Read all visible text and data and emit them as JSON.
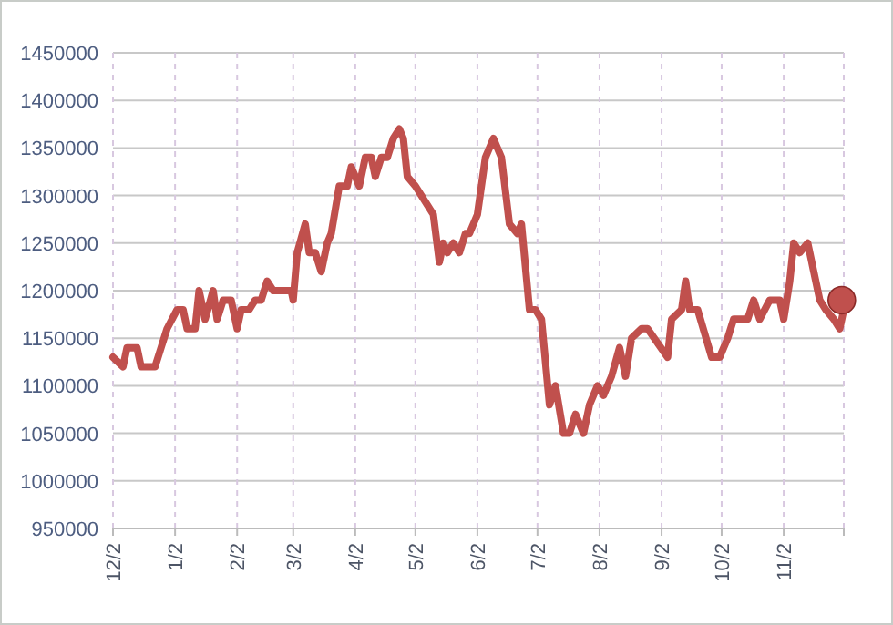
{
  "chart_data": {
    "type": "line",
    "grid": true,
    "marker": "none",
    "line_style": "solid",
    "xlim": [
      "2000-12-02",
      "2001-12-02"
    ],
    "xticks": [
      {
        "value": "2000-12-02",
        "label": "12/2"
      },
      {
        "value": "2001-01-02",
        "label": "1/2"
      },
      {
        "value": "2001-02-02",
        "label": "2/2"
      },
      {
        "value": "2001-03-02",
        "label": "3/2"
      },
      {
        "value": "2001-04-02",
        "label": "4/2"
      },
      {
        "value": "2001-05-02",
        "label": "5/2"
      },
      {
        "value": "2001-06-02",
        "label": "6/2"
      },
      {
        "value": "2001-07-02",
        "label": "7/2"
      },
      {
        "value": "2001-08-02",
        "label": "8/2"
      },
      {
        "value": "2001-09-02",
        "label": "9/2"
      },
      {
        "value": "2001-10-02",
        "label": "10/2"
      },
      {
        "value": "2001-11-02",
        "label": "11/2"
      },
      {
        "value": "2001-12-02",
        "label": null
      }
    ],
    "ylim": [
      950000,
      1450000
    ],
    "yticks": [
      950000,
      1000000,
      1050000,
      1100000,
      1150000,
      1200000,
      1250000,
      1300000,
      1350000,
      1400000,
      1450000
    ],
    "series": [
      {
        "color": "#c0504d",
        "x": [
          "2000-12-02",
          "2000-12-07",
          "2000-12-09",
          "2000-12-14",
          "2000-12-16",
          "2000-12-23",
          "2000-12-26",
          "2000-12-29",
          "2001-01-03",
          "2001-01-06",
          "2001-01-08",
          "2001-01-12",
          "2001-01-14",
          "2001-01-17",
          "2001-01-21",
          "2001-01-23",
          "2001-01-26",
          "2001-01-30",
          "2001-02-02",
          "2001-02-04",
          "2001-02-08",
          "2001-02-11",
          "2001-02-14",
          "2001-02-17",
          "2001-02-20",
          "2001-03-01",
          "2001-03-02",
          "2001-03-04",
          "2001-03-08",
          "2001-03-10",
          "2001-03-13",
          "2001-03-16",
          "2001-03-19",
          "2001-03-21",
          "2001-03-25",
          "2001-03-29",
          "2001-03-31",
          "2001-04-04",
          "2001-04-07",
          "2001-04-10",
          "2001-04-12",
          "2001-04-15",
          "2001-04-18",
          "2001-04-21",
          "2001-04-24",
          "2001-04-26",
          "2001-04-28",
          "2001-05-02",
          "2001-05-11",
          "2001-05-14",
          "2001-05-16",
          "2001-05-18",
          "2001-05-21",
          "2001-05-24",
          "2001-05-27",
          "2001-05-29",
          "2001-06-02",
          "2001-06-06",
          "2001-06-10",
          "2001-06-14",
          "2001-06-18",
          "2001-06-22",
          "2001-06-24",
          "2001-06-28",
          "2001-07-01",
          "2001-07-04",
          "2001-07-08",
          "2001-07-11",
          "2001-07-15",
          "2001-07-18",
          "2001-07-21",
          "2001-07-25",
          "2001-07-28",
          "2001-08-01",
          "2001-08-04",
          "2001-08-08",
          "2001-08-12",
          "2001-08-15",
          "2001-08-18",
          "2001-08-23",
          "2001-08-26",
          "2001-09-05",
          "2001-09-07",
          "2001-09-12",
          "2001-09-14",
          "2001-09-16",
          "2001-09-20",
          "2001-09-27",
          "2001-10-01",
          "2001-10-05",
          "2001-10-08",
          "2001-10-15",
          "2001-10-18",
          "2001-10-21",
          "2001-10-26",
          "2001-10-31",
          "2001-11-02",
          "2001-11-05",
          "2001-11-07",
          "2001-11-10",
          "2001-11-14",
          "2001-11-17",
          "2001-11-20",
          "2001-11-23",
          "2001-11-27",
          "2001-11-30",
          "2001-12-02"
        ],
        "values": [
          1130000,
          1120000,
          1140000,
          1140000,
          1120000,
          1120000,
          1140000,
          1160000,
          1180000,
          1180000,
          1160000,
          1160000,
          1200000,
          1170000,
          1200000,
          1170000,
          1190000,
          1190000,
          1160000,
          1180000,
          1180000,
          1190000,
          1190000,
          1210000,
          1200000,
          1200000,
          1190000,
          1240000,
          1270000,
          1240000,
          1240000,
          1220000,
          1250000,
          1260000,
          1310000,
          1310000,
          1330000,
          1310000,
          1340000,
          1340000,
          1320000,
          1340000,
          1340000,
          1360000,
          1370000,
          1360000,
          1320000,
          1310000,
          1280000,
          1230000,
          1250000,
          1240000,
          1250000,
          1240000,
          1260000,
          1260000,
          1280000,
          1340000,
          1360000,
          1340000,
          1270000,
          1260000,
          1270000,
          1180000,
          1180000,
          1170000,
          1080000,
          1100000,
          1050000,
          1050000,
          1070000,
          1050000,
          1080000,
          1100000,
          1090000,
          1110000,
          1140000,
          1110000,
          1150000,
          1160000,
          1160000,
          1130000,
          1170000,
          1180000,
          1210000,
          1180000,
          1180000,
          1130000,
          1130000,
          1150000,
          1170000,
          1170000,
          1190000,
          1170000,
          1190000,
          1190000,
          1170000,
          1210000,
          1250000,
          1240000,
          1250000,
          1220000,
          1190000,
          1180000,
          1170000,
          1160000,
          1180000
        ]
      },
      {
        "type": "scatter",
        "marker": "circle",
        "color": "#c0504d",
        "x": [
          "2001-12-01"
        ],
        "values": [
          1190000
        ]
      }
    ]
  }
}
